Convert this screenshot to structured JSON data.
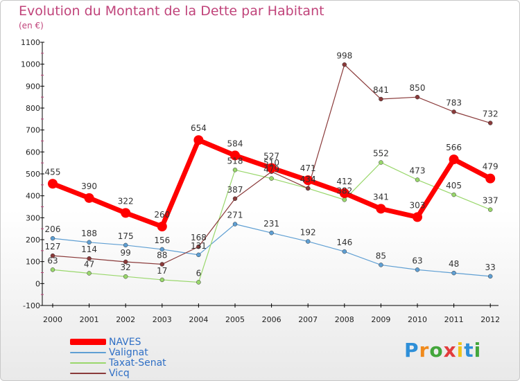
{
  "chart_data": {
    "type": "line",
    "title": "Evolution du Montant de la Dette par Habitant",
    "subtitle": "(en €)",
    "ylim": [
      -100,
      1100
    ],
    "yticks": [
      -100,
      0,
      100,
      200,
      300,
      400,
      500,
      600,
      700,
      800,
      900,
      1000,
      1100
    ],
    "categories": [
      "2000",
      "2001",
      "2002",
      "2003",
      "2004",
      "2005",
      "2006",
      "2007",
      "2008",
      "2009",
      "2010",
      "2011",
      "2012"
    ],
    "grid": false,
    "legend_position": "bottom-left",
    "series": [
      {
        "name": "NAVES",
        "color": "#ff0000",
        "values": [
          455,
          390,
          322,
          260,
          654,
          584,
          527,
          471,
          412,
          341,
          303,
          566,
          479
        ]
      },
      {
        "name": "Valignat",
        "color": "#5f9fd3",
        "values": [
          206,
          188,
          175,
          156,
          131,
          271,
          231,
          192,
          146,
          85,
          63,
          48,
          33
        ]
      },
      {
        "name": "Taxat-Senat",
        "color": "#99d76b",
        "values": [
          63,
          47,
          32,
          17,
          6,
          518,
          479,
          434,
          382,
          552,
          473,
          405,
          337
        ]
      },
      {
        "name": "Vicq",
        "color": "#8a3a3a",
        "values": [
          127,
          114,
          99,
          88,
          168,
          387,
          510,
          434,
          998,
          841,
          850,
          783,
          732
        ]
      }
    ],
    "value_labels": {
      "NAVES": [
        "455",
        "390",
        "322",
        "260",
        "654",
        "584",
        "527",
        "471",
        "412",
        "341",
        "303",
        "566",
        "479"
      ],
      "Valignat": [
        "206",
        "188",
        "175",
        "156",
        "131",
        "271",
        "231",
        "192",
        "146",
        "85",
        "63",
        "48",
        "33"
      ],
      "Taxat-Senat": [
        "63",
        "47",
        "32",
        "17",
        "6",
        "518",
        "479",
        "434",
        "382",
        "552",
        "473",
        "405",
        "337"
      ],
      "Vicq": [
        "127",
        "114",
        "99",
        "88",
        "168",
        "387",
        "510",
        "434",
        "998",
        "841",
        "850",
        "783",
        "732"
      ]
    }
  },
  "logo": {
    "letters": [
      "P",
      "r",
      "o",
      "x",
      "i",
      "t",
      "i"
    ],
    "colors": [
      "#2e8fd8",
      "#f08a1c",
      "#43a63b",
      "#e23c3c",
      "#f0c419",
      "#2e8fd8",
      "#43a63b"
    ]
  }
}
